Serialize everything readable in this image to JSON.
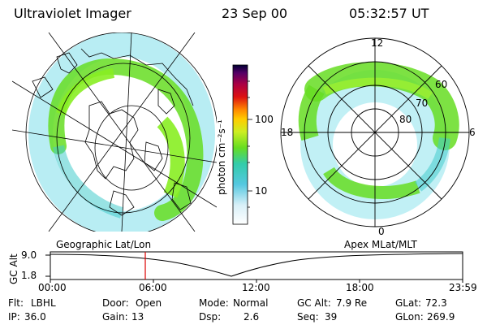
{
  "header": {
    "instrument": "Ultraviolet Imager",
    "date": "23 Sep 00",
    "time": "05:32:57 UT"
  },
  "colorbar": {
    "unit_label": "photon cm⁻²s⁻¹",
    "ticks": [
      "100",
      "10"
    ]
  },
  "polar_plot": {
    "mlt_labels": [
      "12",
      "18",
      "6",
      "0"
    ],
    "lat_labels": [
      "60",
      "70",
      "80"
    ]
  },
  "panel_labels": {
    "left": "Geographic Lat/Lon",
    "right": "Apex MLat/MLT"
  },
  "altitude_plot": {
    "axis_title": "GC Alt",
    "ymax": "9.0",
    "ymin": "1.8",
    "x_ticks": [
      "00:00",
      "06:00",
      "12:00",
      "18:00",
      "23:59"
    ]
  },
  "footer": {
    "row1": [
      {
        "label": "Flt:",
        "value": "LBHL"
      },
      {
        "label": "Door:",
        "value": "Open"
      },
      {
        "label": "Mode:",
        "value": "Normal"
      },
      {
        "label": "GC Alt:",
        "value": "7.9 Re"
      },
      {
        "label": "GLat:",
        "value": "72.3"
      }
    ],
    "row2": [
      {
        "label": "IP:",
        "value": "36.0"
      },
      {
        "label": "Gain:",
        "value": "13"
      },
      {
        "label": "Dsp:",
        "value": "2.6"
      },
      {
        "label": "Seq:",
        "value": "39"
      },
      {
        "label": "GLon:",
        "value": "269.9"
      }
    ]
  },
  "colors": {
    "auroral_green": "#66dd22",
    "auroral_cyan": "#33ccdd",
    "marker_red": "#dd0000"
  }
}
